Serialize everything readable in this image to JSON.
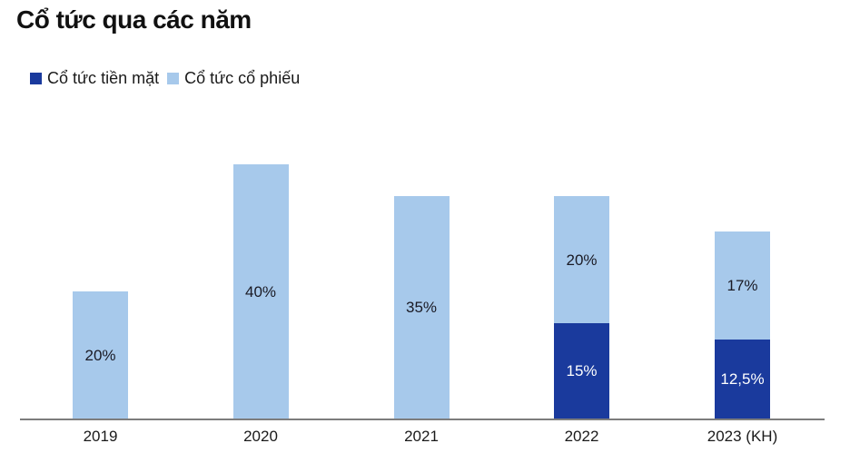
{
  "title": "Cổ tức qua các năm",
  "colors": {
    "cash_dividend": "#1A3A9D",
    "stock_dividend": "#A7C9EB",
    "label_on_light": "#1A1A24",
    "label_on_dark": "#FFFFFF",
    "axis_line": "#7D7D7D",
    "title_text": "#111111"
  },
  "chart_data": {
    "type": "bar",
    "stacked": true,
    "title": "Cổ tức qua các năm",
    "xlabel": "",
    "ylabel": "",
    "ylim": [
      0,
      42
    ],
    "grid": false,
    "legend_position": "top-left",
    "categories": [
      "2019",
      "2020",
      "2021",
      "2022",
      "2023 (KH)"
    ],
    "series": [
      {
        "name": "Cổ tức tiền mặt",
        "color": "#1A3A9D",
        "values": [
          0,
          0,
          0,
          15,
          12.5
        ],
        "labels": [
          "",
          "",
          "",
          "15%",
          "12,5%"
        ],
        "label_color": "#FFFFFF"
      },
      {
        "name": "Cổ tức cổ phiếu",
        "color": "#A7C9EB",
        "values": [
          20,
          40,
          35,
          20,
          17
        ],
        "labels": [
          "20%",
          "40%",
          "35%",
          "20%",
          "17%"
        ],
        "label_color": "#1A1A24"
      }
    ]
  }
}
